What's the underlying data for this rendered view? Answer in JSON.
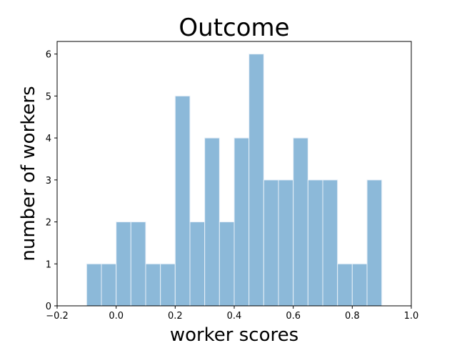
{
  "chart_data": {
    "type": "bar",
    "title": "Outcome",
    "xlabel": "worker scores",
    "ylabel": "number of workers",
    "xlim": [
      -0.2,
      1.0
    ],
    "ylim": [
      0,
      6.3
    ],
    "grid": false,
    "bar_color": "#8cb9d9",
    "bar_edge_color": "#e8f0f8",
    "x_ticks": [
      {
        "value": -0.2,
        "label": "−0.2"
      },
      {
        "value": 0.0,
        "label": "0.0"
      },
      {
        "value": 0.2,
        "label": "0.2"
      },
      {
        "value": 0.4,
        "label": "0.4"
      },
      {
        "value": 0.6,
        "label": "0.6"
      },
      {
        "value": 0.8,
        "label": "0.8"
      },
      {
        "value": 1.0,
        "label": "1.0"
      }
    ],
    "y_ticks": [
      {
        "value": 0,
        "label": "0"
      },
      {
        "value": 1,
        "label": "1"
      },
      {
        "value": 2,
        "label": "2"
      },
      {
        "value": 3,
        "label": "3"
      },
      {
        "value": 4,
        "label": "4"
      },
      {
        "value": 5,
        "label": "5"
      },
      {
        "value": 6,
        "label": "6"
      }
    ],
    "bins": [
      {
        "x0": -0.1,
        "x1": -0.05,
        "count": 1
      },
      {
        "x0": -0.05,
        "x1": 0.0,
        "count": 1
      },
      {
        "x0": 0.0,
        "x1": 0.05,
        "count": 2
      },
      {
        "x0": 0.05,
        "x1": 0.1,
        "count": 2
      },
      {
        "x0": 0.1,
        "x1": 0.15,
        "count": 1
      },
      {
        "x0": 0.15,
        "x1": 0.2,
        "count": 1
      },
      {
        "x0": 0.2,
        "x1": 0.25,
        "count": 5
      },
      {
        "x0": 0.25,
        "x1": 0.3,
        "count": 2
      },
      {
        "x0": 0.3,
        "x1": 0.35,
        "count": 4
      },
      {
        "x0": 0.35,
        "x1": 0.4,
        "count": 2
      },
      {
        "x0": 0.4,
        "x1": 0.45,
        "count": 4
      },
      {
        "x0": 0.45,
        "x1": 0.5,
        "count": 6
      },
      {
        "x0": 0.5,
        "x1": 0.55,
        "count": 3
      },
      {
        "x0": 0.55,
        "x1": 0.6,
        "count": 3
      },
      {
        "x0": 0.6,
        "x1": 0.65,
        "count": 4
      },
      {
        "x0": 0.65,
        "x1": 0.7,
        "count": 3
      },
      {
        "x0": 0.7,
        "x1": 0.75,
        "count": 3
      },
      {
        "x0": 0.75,
        "x1": 0.8,
        "count": 1
      },
      {
        "x0": 0.8,
        "x1": 0.85,
        "count": 1
      },
      {
        "x0": 0.85,
        "x1": 0.9,
        "count": 3
      }
    ]
  }
}
